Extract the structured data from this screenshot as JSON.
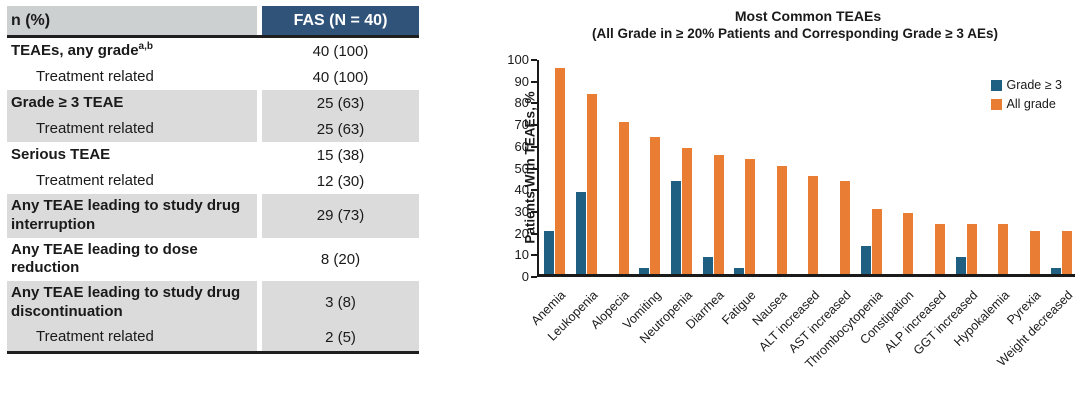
{
  "colors": {
    "grade3_blue": "#1f6082",
    "all_grade_orange": "#e97d33",
    "table_header_blue": "#30537a",
    "table_header_gray": "#ccd0d0",
    "table_row_gray": "#dbdbdb"
  },
  "table": {
    "header": {
      "col1": "n (%)",
      "col2": "FAS (N = 40)"
    },
    "rows": [
      {
        "label": "TEAEs, any grade",
        "sup": "a,b",
        "value": "40 (100)",
        "bold": true,
        "indent": false,
        "shaded": false
      },
      {
        "label": "Treatment related",
        "value": "40 (100)",
        "bold": false,
        "indent": true,
        "shaded": false
      },
      {
        "label": "Grade ≥ 3 TEAE",
        "value": "25 (63)",
        "bold": true,
        "indent": false,
        "shaded": true
      },
      {
        "label": "Treatment related",
        "value": "25 (63)",
        "bold": false,
        "indent": true,
        "shaded": true
      },
      {
        "label": "Serious TEAE",
        "value": "15 (38)",
        "bold": true,
        "indent": false,
        "shaded": false
      },
      {
        "label": "Treatment related",
        "value": "12 (30)",
        "bold": false,
        "indent": true,
        "shaded": false
      },
      {
        "label": "Any TEAE leading to study drug interruption",
        "value": "29 (73)",
        "bold": true,
        "indent": false,
        "shaded": true
      },
      {
        "label": "Any TEAE leading to dose reduction",
        "value": "8 (20)",
        "bold": true,
        "indent": false,
        "shaded": false
      },
      {
        "label": "Any TEAE leading to study drug discontinuation",
        "value": "3 (8)",
        "bold": true,
        "indent": false,
        "shaded": true
      },
      {
        "label": "Treatment related",
        "value": "2 (5)",
        "bold": false,
        "indent": true,
        "shaded": true
      }
    ]
  },
  "chart_data": {
    "type": "bar",
    "title": "Most Common TEAEs",
    "subtitle": "(All Grade in ≥ 20% Patients and Corresponding Grade ≥ 3 AEs)",
    "ylabel": "Patients With TEAEs, %",
    "xlabel": "",
    "ylim": [
      0,
      100
    ],
    "yticks": [
      0,
      10,
      20,
      30,
      40,
      50,
      60,
      70,
      80,
      90,
      100
    ],
    "grid": false,
    "legend_position": "top-right",
    "categories": [
      "Anemia",
      "Leukopenia",
      "Alopecia",
      "Vomiting",
      "Neutropenia",
      "Diarrhea",
      "Fatigue",
      "Nausea",
      "ALT increased",
      "AST increased",
      "Thrombocytopenia",
      "Constipation",
      "ALP increased",
      "GGT increased",
      "Hypokalemia",
      "Pyrexia",
      "Weight decreased"
    ],
    "series": [
      {
        "name": "Grade ≥ 3",
        "color": "#1f6082",
        "values": [
          20,
          38,
          0,
          3,
          43,
          8,
          3,
          0,
          0,
          0,
          13,
          0,
          0,
          8,
          0,
          0,
          3
        ]
      },
      {
        "name": "All grade",
        "color": "#e97d33",
        "values": [
          95,
          83,
          70,
          63,
          58,
          55,
          53,
          50,
          45,
          43,
          30,
          28,
          23,
          23,
          23,
          20,
          20
        ]
      }
    ]
  }
}
